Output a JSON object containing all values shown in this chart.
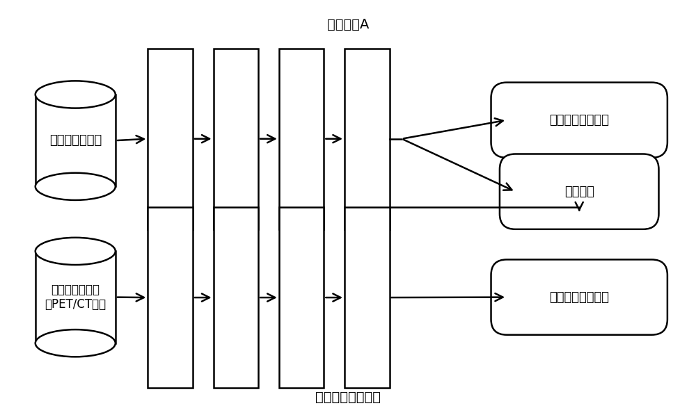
{
  "title_top": "神经网络A",
  "title_bottom": "初始神经网络模型",
  "bg_color": "#ffffff",
  "line_color": "#000000",
  "text_color": "#000000",
  "cyl_top_label": "病理图像数据集",
  "cyl_bot_label": "与病理图像配对\n的PET/CT图像",
  "res1_label": "肺癌诊断分类结果",
  "res2_label": "病理特征",
  "res3_label": "肺癌诊断分类结果",
  "font_size_label": 13,
  "font_size_title": 14,
  "font_size_cyl_bot": 12
}
